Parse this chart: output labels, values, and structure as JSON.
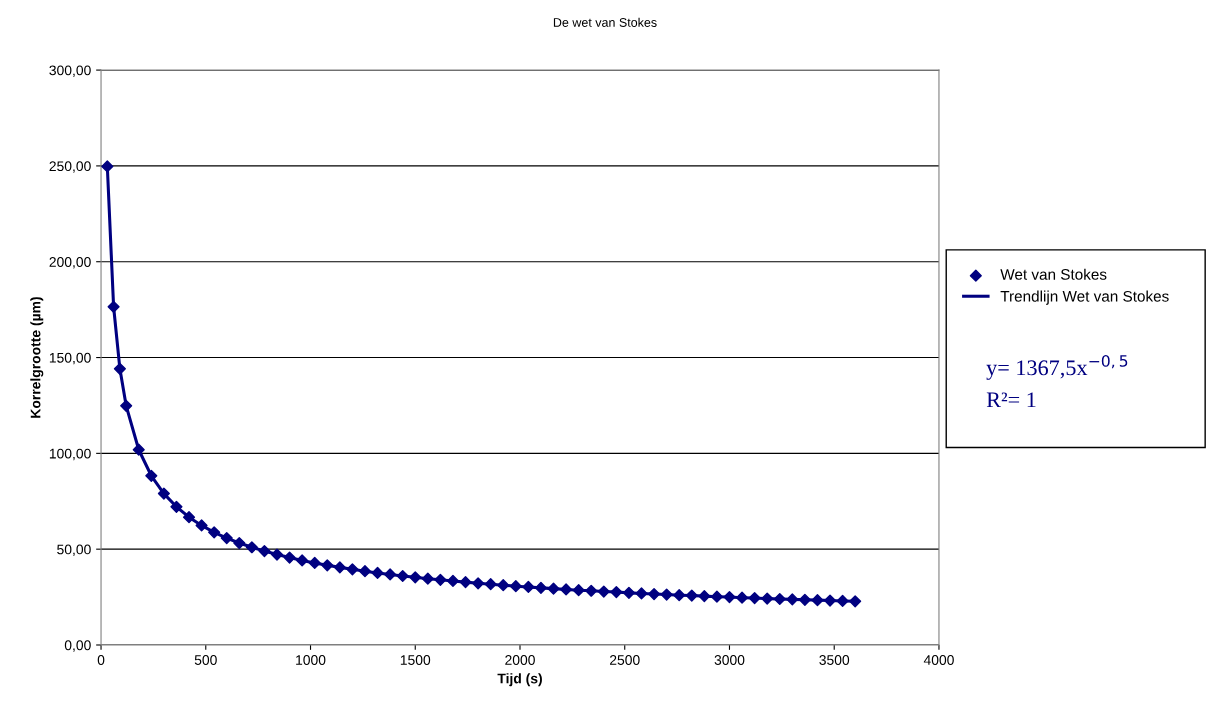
{
  "chart_data": {
    "type": "scatter",
    "title": "De wet van Stokes",
    "xlabel": "Tijd (s)",
    "ylabel": "Korrelgrootte (µm)",
    "x": [
      30,
      60,
      90,
      120,
      180,
      240,
      300,
      360,
      420,
      480,
      540,
      600,
      660,
      720,
      780,
      840,
      900,
      960,
      1020,
      1080,
      1140,
      1200,
      1260,
      1320,
      1380,
      1440,
      1500,
      1560,
      1620,
      1680,
      1740,
      1800,
      1860,
      1920,
      1980,
      2040,
      2100,
      2160,
      2220,
      2280,
      2340,
      2400,
      2460,
      2520,
      2580,
      2640,
      2700,
      2760,
      2820,
      2880,
      2940,
      3000,
      3060,
      3120,
      3180,
      3240,
      3300,
      3360,
      3420,
      3480,
      3540,
      3600
    ],
    "series": [
      {
        "name": "Wet van Stokes",
        "color": "#000080",
        "marker": "diamond",
        "values": [
          249.7,
          176.5,
          144.1,
          124.8,
          101.9,
          88.3,
          79.0,
          72.1,
          66.7,
          62.4,
          58.8,
          55.8,
          53.2,
          51.0,
          49.0,
          47.2,
          45.6,
          44.1,
          42.8,
          41.6,
          40.5,
          39.5,
          38.5,
          37.6,
          36.8,
          36.0,
          35.3,
          34.6,
          34.0,
          33.4,
          32.8,
          32.2,
          31.7,
          31.2,
          30.7,
          30.3,
          29.8,
          29.4,
          29.0,
          28.6,
          28.3,
          27.9,
          27.6,
          27.2,
          26.9,
          26.6,
          26.3,
          26.0,
          25.8,
          25.5,
          25.2,
          25.0,
          24.7,
          24.5,
          24.2,
          24.0,
          23.8,
          23.6,
          23.4,
          23.2,
          23.0,
          22.8
        ]
      },
      {
        "name": "Trendlijn Wet van Stokes",
        "type": "line",
        "color": "#000080",
        "line_style": "solid",
        "x": [
          30,
          60,
          90,
          120,
          180,
          240,
          300,
          360,
          420,
          480,
          540,
          600,
          660,
          720,
          780,
          840,
          900,
          960,
          1020,
          1080,
          1140,
          1200,
          1260,
          1320,
          1380,
          1440,
          1500,
          1560,
          1620,
          1680,
          1740,
          1800,
          1860,
          1920,
          1980,
          2040,
          2100,
          2160,
          2220,
          2280,
          2340,
          2400,
          2460,
          2520,
          2580,
          2640,
          2700,
          2760,
          2820,
          2880,
          2940,
          3000,
          3060,
          3120,
          3180,
          3240,
          3300,
          3360,
          3420,
          3480,
          3540,
          3600
        ],
        "values": [
          249.7,
          176.5,
          144.1,
          124.8,
          101.9,
          88.3,
          79.0,
          72.1,
          66.7,
          62.4,
          58.8,
          55.8,
          53.2,
          51.0,
          49.0,
          47.2,
          45.6,
          44.1,
          42.8,
          41.6,
          40.5,
          39.5,
          38.5,
          37.6,
          36.8,
          36.0,
          35.3,
          34.6,
          34.0,
          33.4,
          32.8,
          32.2,
          31.7,
          31.2,
          30.7,
          30.3,
          29.8,
          29.4,
          29.0,
          28.6,
          28.3,
          27.9,
          27.6,
          27.2,
          26.9,
          26.6,
          26.3,
          26.0,
          25.8,
          25.5,
          25.2,
          25.0,
          24.7,
          24.5,
          24.2,
          24.0,
          23.8,
          23.6,
          23.4,
          23.2,
          23.0,
          22.8
        ]
      }
    ],
    "xlim": [
      0,
      4000
    ],
    "xticks": [
      0,
      500,
      1000,
      1500,
      2000,
      2500,
      3000,
      3500,
      4000
    ],
    "ylim": [
      0,
      300
    ],
    "yticks": [
      {
        "value": 0,
        "label": "0,00"
      },
      {
        "value": 50,
        "label": "50,00"
      },
      {
        "value": 100,
        "label": "100,00"
      },
      {
        "value": 150,
        "label": "150,00"
      },
      {
        "value": 200,
        "label": "200,00"
      },
      {
        "value": 250,
        "label": "250,00"
      },
      {
        "value": 300,
        "label": "300,00"
      }
    ],
    "grid": "y",
    "legend": "right",
    "annotations": [
      "y= 1367,5x$^{−0,5}$",
      "R²= 1"
    ]
  }
}
